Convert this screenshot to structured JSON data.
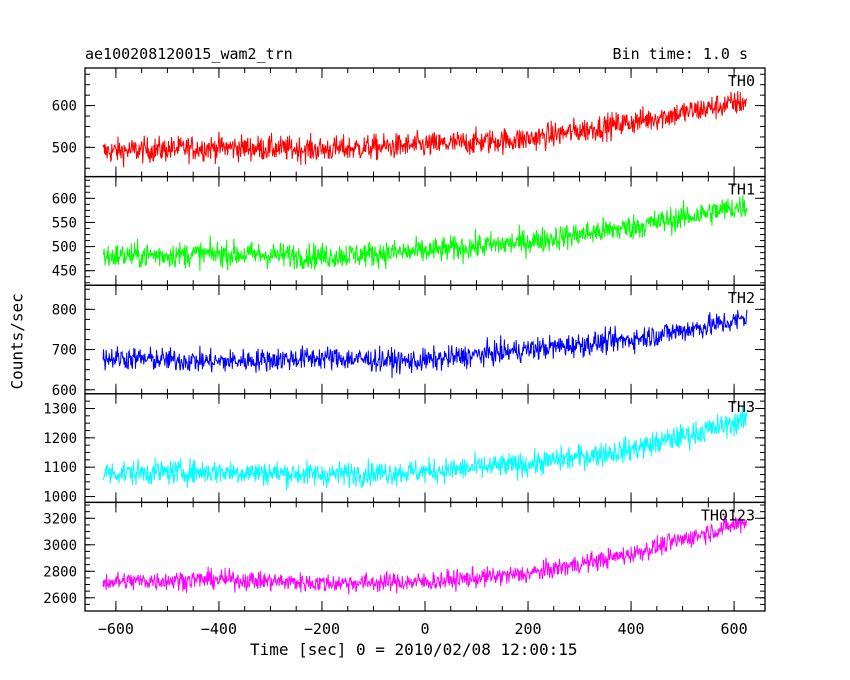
{
  "header": {
    "title_left": "ae100208120015_wam2_trn",
    "title_right": "Bin time: 1.0 s"
  },
  "axes": {
    "xlabel": "Time [sec] 0 = 2010/02/08 12:00:15",
    "ylabel": "Counts/sec"
  },
  "chart_data": {
    "type": "line",
    "title": "ae100208120015_wam2_trn",
    "subtitle": "Bin time: 1.0 s",
    "xlabel": "Time [sec] 0 = 2010/02/08 12:00:15",
    "ylabel": "Counts/sec",
    "xlim": [
      -660,
      660
    ],
    "data_x_range": [
      -625,
      625
    ],
    "x_ticks": [
      -600,
      -400,
      -200,
      0,
      200,
      400,
      600
    ],
    "x_tick_labels": [
      "−600",
      "−400",
      "−200",
      "0",
      "200",
      "400",
      "600"
    ],
    "grid": false,
    "panels": [
      {
        "name": "TH0",
        "color": "#ff0000",
        "ylim": [
          430,
          690
        ],
        "y_ticks": [
          500,
          600
        ],
        "trend": [
          {
            "x": -625,
            "y": 490
          },
          {
            "x": -400,
            "y": 500
          },
          {
            "x": -200,
            "y": 495
          },
          {
            "x": 0,
            "y": 505
          },
          {
            "x": 200,
            "y": 520
          },
          {
            "x": 400,
            "y": 560
          },
          {
            "x": 600,
            "y": 605
          },
          {
            "x": 625,
            "y": 610
          }
        ],
        "noise_amplitude": 40
      },
      {
        "name": "TH1",
        "color": "#00ff00",
        "ylim": [
          420,
          645
        ],
        "y_ticks": [
          450,
          500,
          550,
          600
        ],
        "trend": [
          {
            "x": -625,
            "y": 480
          },
          {
            "x": -400,
            "y": 485
          },
          {
            "x": -200,
            "y": 480
          },
          {
            "x": 0,
            "y": 490
          },
          {
            "x": 200,
            "y": 510
          },
          {
            "x": 400,
            "y": 540
          },
          {
            "x": 600,
            "y": 580
          },
          {
            "x": 625,
            "y": 585
          }
        ],
        "noise_amplitude": 35
      },
      {
        "name": "TH2",
        "color": "#0000ff",
        "ylim": [
          590,
          860
        ],
        "y_ticks": [
          600,
          700,
          800
        ],
        "trend": [
          {
            "x": -625,
            "y": 680
          },
          {
            "x": -400,
            "y": 670
          },
          {
            "x": -200,
            "y": 680
          },
          {
            "x": -20,
            "y": 670
          },
          {
            "x": 200,
            "y": 700
          },
          {
            "x": 400,
            "y": 725
          },
          {
            "x": 600,
            "y": 770
          },
          {
            "x": 625,
            "y": 780
          }
        ],
        "noise_amplitude": 38
      },
      {
        "name": "TH3",
        "color": "#00ffff",
        "ylim": [
          980,
          1350
        ],
        "y_ticks": [
          1000,
          1100,
          1200,
          1300
        ],
        "trend": [
          {
            "x": -625,
            "y": 1080
          },
          {
            "x": -400,
            "y": 1085
          },
          {
            "x": -200,
            "y": 1075
          },
          {
            "x": 0,
            "y": 1085
          },
          {
            "x": 200,
            "y": 1110
          },
          {
            "x": 400,
            "y": 1160
          },
          {
            "x": 600,
            "y": 1250
          },
          {
            "x": 625,
            "y": 1265
          }
        ],
        "noise_amplitude": 55
      },
      {
        "name": "TH0123",
        "color": "#ff00ff",
        "ylim": [
          2500,
          3320
        ],
        "y_ticks": [
          2600,
          2800,
          3000,
          3200
        ],
        "trend": [
          {
            "x": -625,
            "y": 2720
          },
          {
            "x": -400,
            "y": 2740
          },
          {
            "x": -200,
            "y": 2710
          },
          {
            "x": 0,
            "y": 2720
          },
          {
            "x": 200,
            "y": 2780
          },
          {
            "x": 400,
            "y": 2930
          },
          {
            "x": 600,
            "y": 3150
          },
          {
            "x": 625,
            "y": 3180
          }
        ],
        "noise_amplitude": 95
      }
    ]
  }
}
